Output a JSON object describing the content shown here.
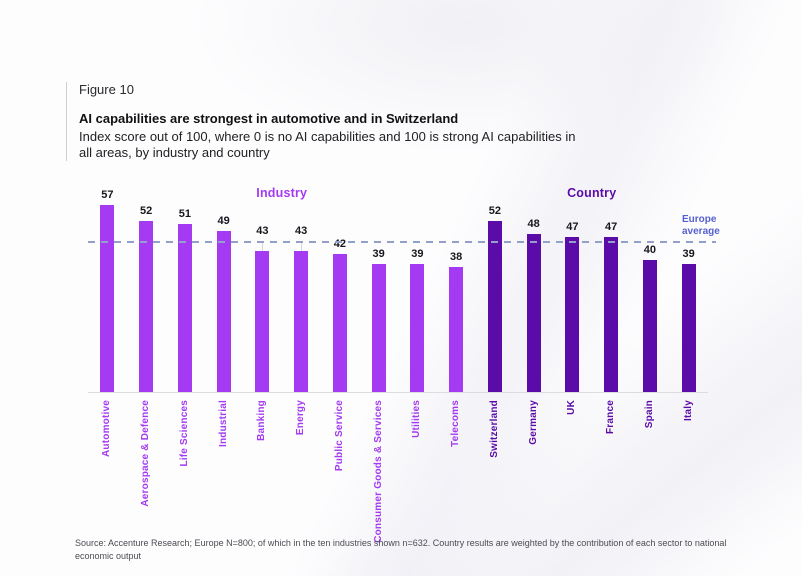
{
  "figure": {
    "label": "Figure 10",
    "title": "AI capabilities are strongest in automotive and in Switzerland",
    "subtitle": "Index score out of 100, where 0 is no AI capabilities and 100 is strong AI capabilities in all areas, by industry and country",
    "source": "Source: Accenture Research; Europe N=800; of which in the ten industries shown n=632. Country results are weighted by the contribution of each sector to national economic output"
  },
  "colors": {
    "industry_bar": "#a43af2",
    "country_bar": "#5a0ba8",
    "reference_line": "#93a0c9",
    "reference_label": "#5560cf",
    "value_label": "#17171d",
    "baseline": "#dcdbe0"
  },
  "chart_data": {
    "type": "bar",
    "title": "AI capabilities are strongest in automotive and in Switzerland",
    "subtitle": "Index score out of 100, where 0 is no AI capabilities and 100 is strong AI capabilities in all areas, by industry and country",
    "ylim": [
      0,
      60
    ],
    "grid": false,
    "value_labels": true,
    "groups": [
      {
        "label": "Industry",
        "color": "#a43af2",
        "categories": [
          "Automotive",
          "Aerospace & Defence",
          "Life Sciences",
          "Industrial",
          "Banking",
          "Energy",
          "Public Service",
          "Consumer Goods & Services",
          "Utilities",
          "Telecoms"
        ],
        "values": [
          57,
          52,
          51,
          49,
          43,
          43,
          42,
          39,
          39,
          38
        ]
      },
      {
        "label": "Country",
        "color": "#5a0ba8",
        "categories": [
          "Switzerland",
          "Germany",
          "UK",
          "France",
          "Spain",
          "Italy"
        ],
        "values": [
          52,
          48,
          47,
          47,
          40,
          39
        ]
      }
    ],
    "reference_line": {
      "label": "Europe average",
      "value": 46,
      "color": "#93a0c9",
      "label_color": "#5560cf"
    }
  }
}
